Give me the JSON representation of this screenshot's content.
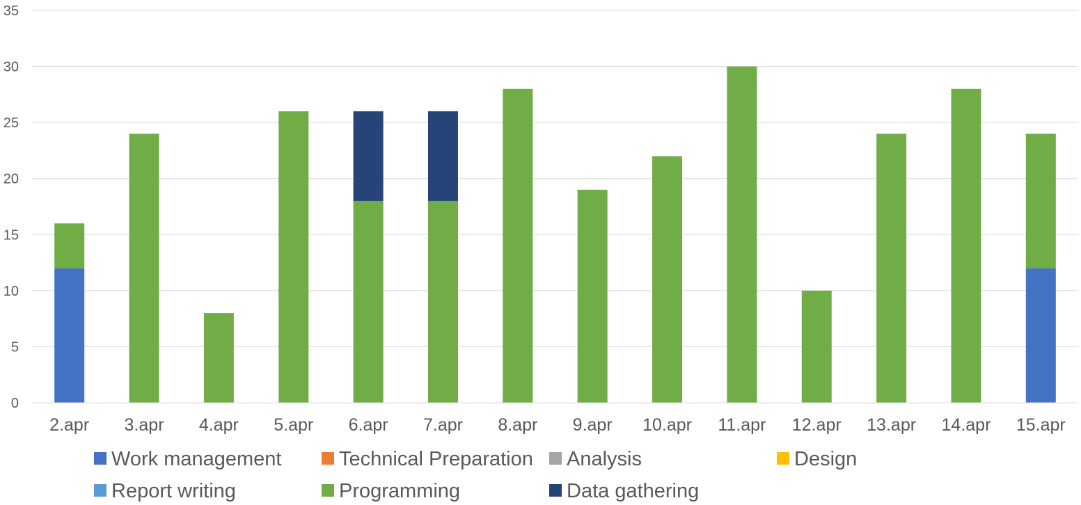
{
  "chart_data": {
    "type": "bar",
    "stacked": true,
    "categories": [
      "2.apr",
      "3.apr",
      "4.apr",
      "5.apr",
      "6.apr",
      "7.apr",
      "8.apr",
      "9.apr",
      "10.apr",
      "11.apr",
      "12.apr",
      "13.apr",
      "14.apr",
      "15.apr"
    ],
    "series": [
      {
        "name": "Work management",
        "color": "#4472C4",
        "values": [
          12,
          0,
          0,
          0,
          0,
          0,
          0,
          0,
          0,
          0,
          0,
          0,
          0,
          12
        ]
      },
      {
        "name": "Technical Preparation",
        "color": "#ED7D31",
        "values": [
          0,
          0,
          0,
          0,
          0,
          0,
          0,
          0,
          0,
          0,
          0,
          0,
          0,
          0
        ]
      },
      {
        "name": "Analysis",
        "color": "#A5A5A5",
        "values": [
          0,
          0,
          0,
          0,
          0,
          0,
          0,
          0,
          0,
          0,
          0,
          0,
          0,
          0
        ]
      },
      {
        "name": "Design",
        "color": "#FFC000",
        "values": [
          0,
          0,
          0,
          0,
          0,
          0,
          0,
          0,
          0,
          0,
          0,
          0,
          0,
          0
        ]
      },
      {
        "name": "Report writing",
        "color": "#5B9BD5",
        "values": [
          0,
          0,
          0,
          0,
          0,
          0,
          0,
          0,
          0,
          0,
          0,
          0,
          0,
          0
        ]
      },
      {
        "name": "Programming",
        "color": "#70AD47",
        "values": [
          4,
          24,
          8,
          26,
          18,
          18,
          28,
          19,
          22,
          30,
          10,
          24,
          28,
          12
        ]
      },
      {
        "name": "Data gathering",
        "color": "#264478",
        "values": [
          0,
          0,
          0,
          0,
          8,
          8,
          0,
          0,
          0,
          0,
          0,
          0,
          0,
          0
        ]
      }
    ],
    "ylim": [
      0,
      35
    ],
    "yticks": [
      "0",
      "5",
      "10",
      "15",
      "20",
      "25",
      "30",
      "35"
    ],
    "grid": true,
    "legend": "bottom",
    "title": "",
    "xlabel": "",
    "ylabel": ""
  }
}
